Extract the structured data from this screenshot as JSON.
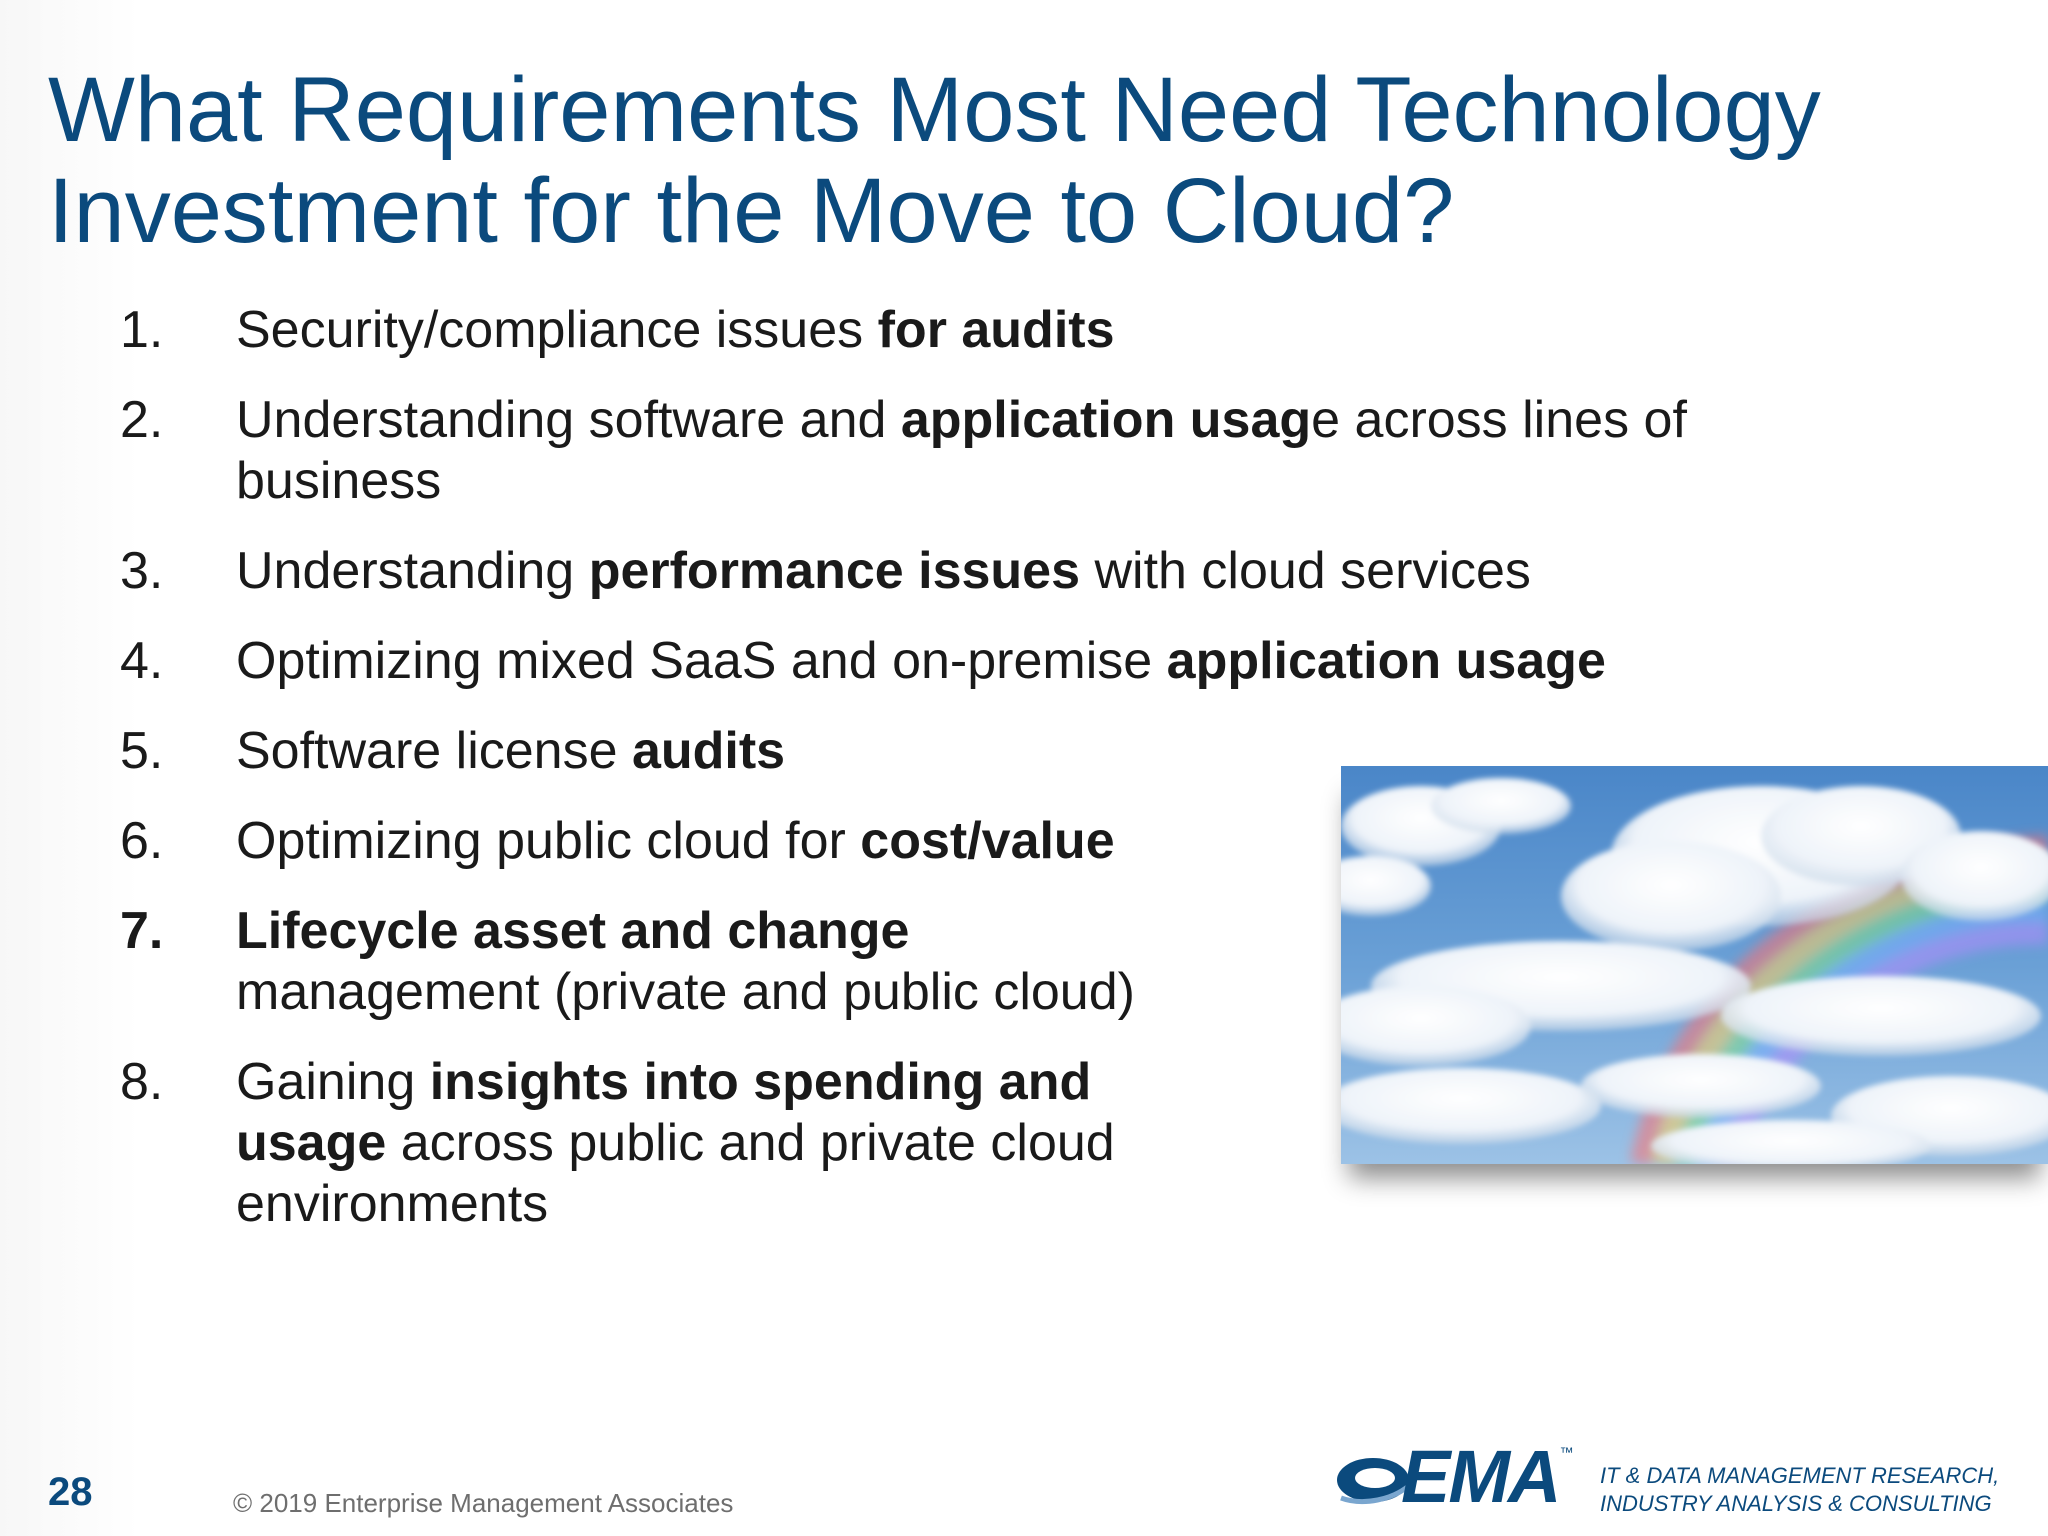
{
  "slide": {
    "title_line1": "What Requirements Most Need Technology",
    "title_line2": "Investment for the Move to Cloud?",
    "items": [
      {
        "num": "1.",
        "lines": [
          [
            {
              "t": "Security/compliance issues ",
              "b": false
            },
            {
              "t": "for audits",
              "b": true
            }
          ]
        ]
      },
      {
        "num": "2.",
        "lines": [
          [
            {
              "t": "Understanding software and ",
              "b": false
            },
            {
              "t": "application usag",
              "b": true
            },
            {
              "t": "e across lines of",
              "b": false
            }
          ],
          [
            {
              "t": "business",
              "b": false
            }
          ]
        ]
      },
      {
        "num": "3.",
        "lines": [
          [
            {
              "t": "Understanding ",
              "b": false
            },
            {
              "t": "performance issues",
              "b": true
            },
            {
              "t": " with cloud services",
              "b": false
            }
          ]
        ]
      },
      {
        "num": "4.",
        "lines": [
          [
            {
              "t": "Optimizing mixed SaaS and on-premise ",
              "b": false
            },
            {
              "t": "application usage",
              "b": true
            }
          ]
        ]
      },
      {
        "num": "5.",
        "lines": [
          [
            {
              "t": "Software license ",
              "b": false
            },
            {
              "t": "audits",
              "b": true
            }
          ]
        ]
      },
      {
        "num": "6.",
        "lines": [
          [
            {
              "t": "Optimizing public cloud for ",
              "b": false
            },
            {
              "t": "cost/value",
              "b": true
            }
          ]
        ]
      },
      {
        "num": "7.",
        "num_bold": true,
        "lines": [
          [
            {
              "t": "Lifecycle asset and change",
              "b": true
            }
          ],
          [
            {
              "t": "management (private and public cloud)",
              "b": false
            }
          ]
        ]
      },
      {
        "num": "8.",
        "lines": [
          [
            {
              "t": "Gaining ",
              "b": false
            },
            {
              "t": "insights into spending and",
              "b": true
            }
          ],
          [
            {
              "t": "usage",
              "b": true
            },
            {
              "t": " across public and private cloud",
              "b": false
            }
          ],
          [
            {
              "t": "environments",
              "b": false
            }
          ]
        ]
      }
    ]
  },
  "footer": {
    "page_number": "28",
    "copyright": "© 2019 Enterprise Management Associates",
    "logo_text": "EMA",
    "logo_tm": "™",
    "tagline_line1": "IT & DATA MANAGEMENT RESEARCH,",
    "tagline_line2": "INDUSTRY ANALYSIS & CONSULTING"
  },
  "colors": {
    "brand": "#0b4a7d",
    "text": "#1a1a1a",
    "muted": "#6e6e6e"
  }
}
